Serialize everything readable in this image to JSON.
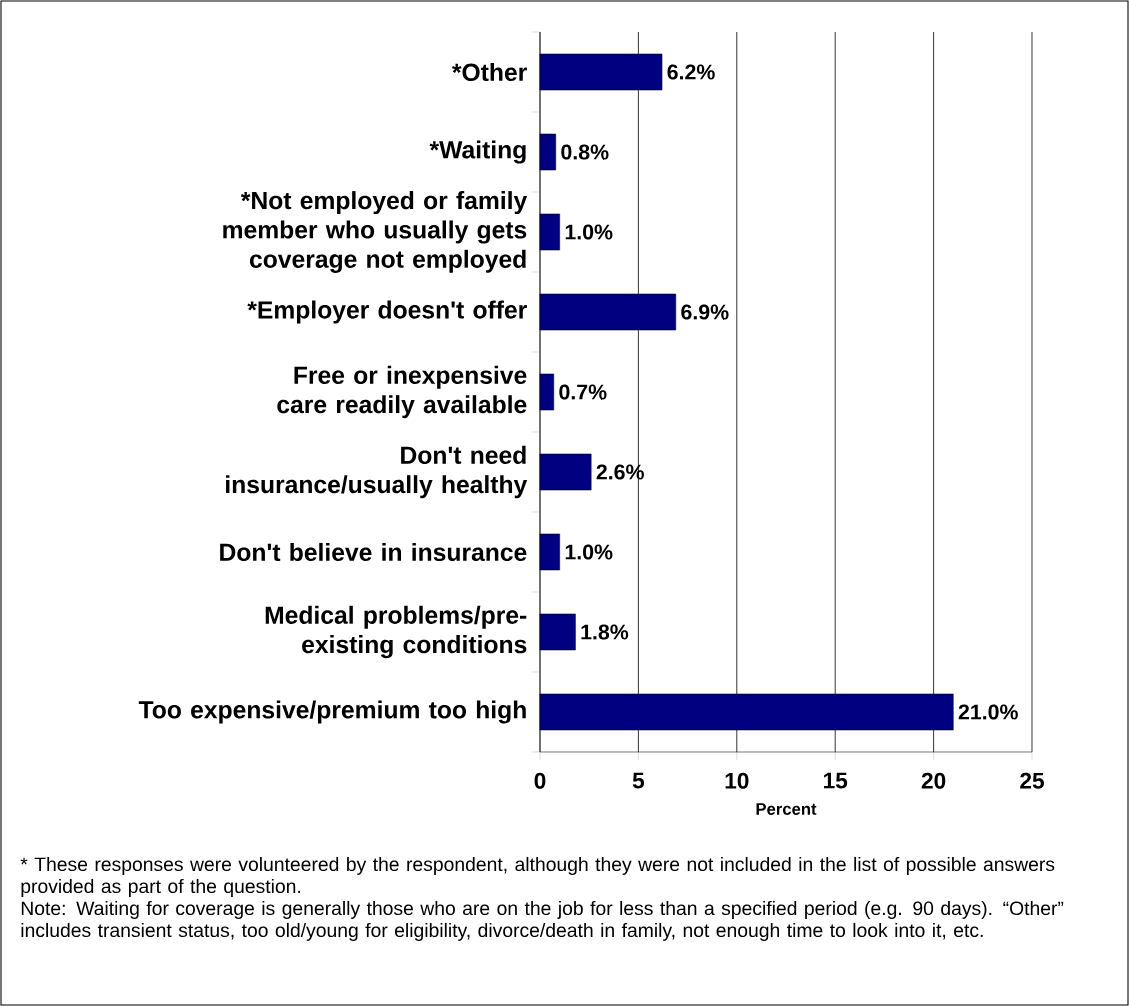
{
  "chart_data": {
    "type": "bar",
    "orientation": "horizontal",
    "categories": [
      "*Other",
      "*Waiting",
      "*Not employed or family member who usually gets coverage not employed",
      "*Employer doesn't offer",
      "Free or inexpensive care readily available",
      "Don't need insurance/usually healthy",
      "Don't believe in insurance",
      "Medical problems/pre-existing conditions",
      "Too expensive/premium too high"
    ],
    "values": [
      6.2,
      0.8,
      1.0,
      6.9,
      0.7,
      2.6,
      1.0,
      1.8,
      21.0
    ],
    "value_labels": [
      "6.2%",
      "0.8%",
      "1.0%",
      "6.9%",
      "0.7%",
      "2.6%",
      "1.0%",
      "1.8%",
      "21.0%"
    ],
    "color": "#000080",
    "xlim": [
      0,
      25
    ],
    "xticks": [
      0,
      5,
      10,
      15,
      20,
      25
    ],
    "xlabel": "Percent",
    "grid": "x",
    "annotations": [
      "*  These responses were volunteered by the respondent, although they were not included in the list of possible answers provided as part of the question.",
      "Note:  Waiting for coverage is generally those who are on the job for less than a specified period (e.g. 90 days).  “Other” includes transient status, too old/young for eligibility, divorce/death in family, not enough time to look into it, etc."
    ]
  }
}
